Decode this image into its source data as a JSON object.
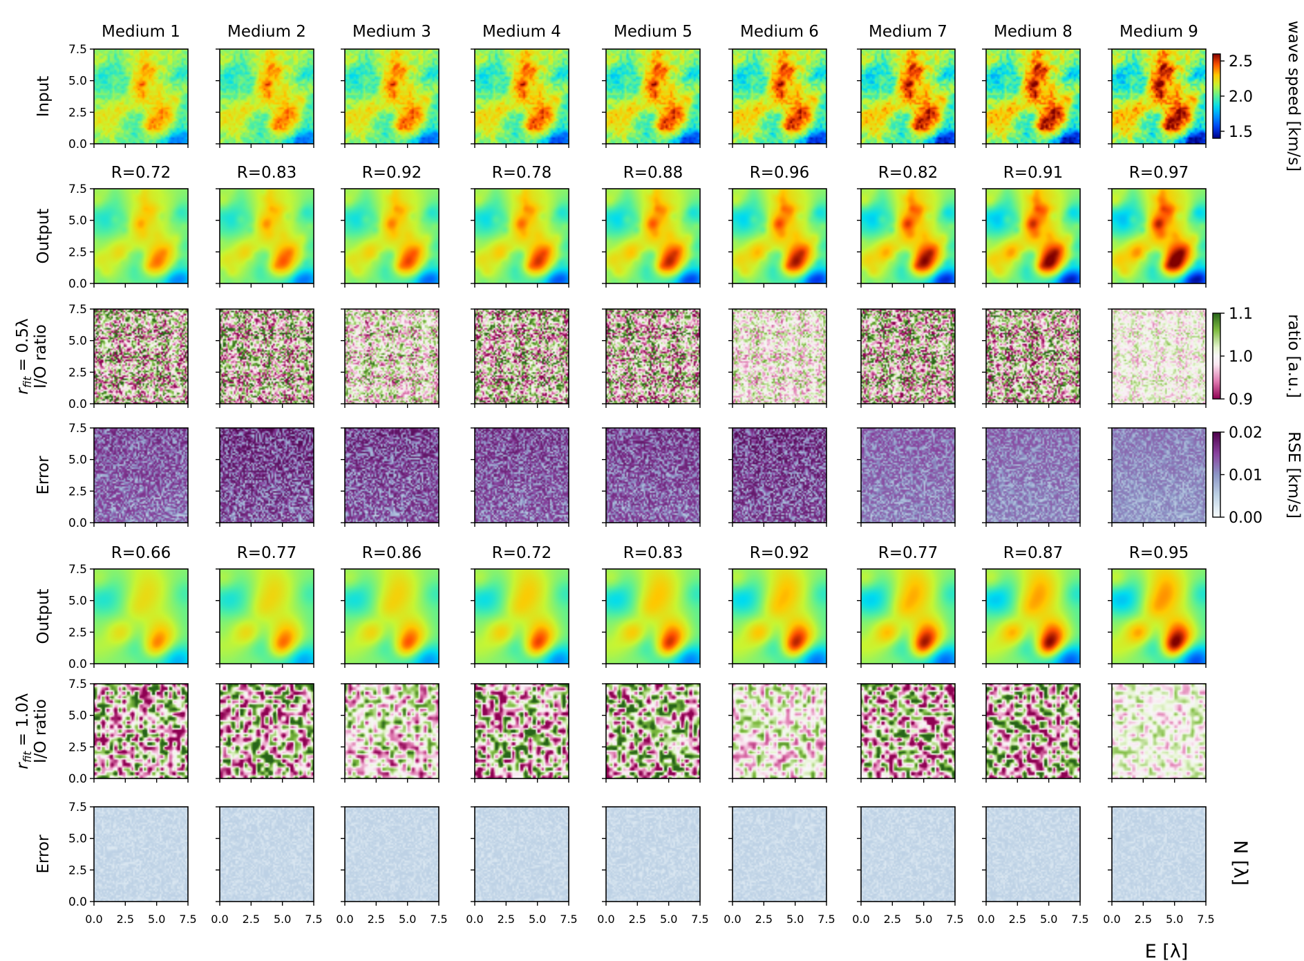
{
  "chart_data": {
    "type": "heatmap",
    "columns": [
      "Medium 1",
      "Medium 2",
      "Medium 3",
      "Medium 4",
      "Medium 5",
      "Medium 6",
      "Medium 7",
      "Medium 8",
      "Medium 9"
    ],
    "axis_ticks": [
      "0.0",
      "2.5",
      "5.0",
      "7.5"
    ],
    "xlabel": "E [λ]",
    "ylabel": "N [λ]",
    "xlim": [
      0,
      7.5
    ],
    "ylim": [
      0,
      7.5
    ],
    "correlation_prefix": "R=",
    "rows": [
      {
        "kind": "speed",
        "label_lines": [
          "Input"
        ],
        "colormap": "jet"
      },
      {
        "kind": "speed_smooth",
        "label_lines": [
          "Output"
        ],
        "colormap": "jet",
        "r_values": [
          "0.72",
          "0.83",
          "0.92",
          "0.78",
          "0.88",
          "0.96",
          "0.82",
          "0.91",
          "0.97"
        ]
      },
      {
        "kind": "ratio",
        "label_lines": [
          "r_fit = 0.5λ",
          "I/O ratio"
        ],
        "colormap": "PiYG"
      },
      {
        "kind": "error_strong",
        "label_lines": [
          "Error"
        ],
        "colormap": "BuPu"
      },
      {
        "kind": "speed_smoother",
        "label_lines": [
          "Output"
        ],
        "colormap": "jet",
        "r_values": [
          "0.66",
          "0.77",
          "0.86",
          "0.72",
          "0.83",
          "0.92",
          "0.77",
          "0.87",
          "0.95"
        ]
      },
      {
        "kind": "ratio_coarse",
        "label_lines": [
          "r_fit = 1.0λ",
          "I/O ratio"
        ],
        "colormap": "PiYG"
      },
      {
        "kind": "error_weak",
        "label_lines": [
          "Error"
        ],
        "colormap": "BuPu"
      }
    ],
    "colorbars": [
      {
        "label": "wave speed [km/s]",
        "ticks": [
          "2.5",
          "2.0",
          "1.5"
        ],
        "tick_values": [
          2.5,
          2.0,
          1.5
        ],
        "range": [
          1.4,
          2.6
        ],
        "colormap": "jet"
      },
      {
        "label": "ratio [a.u.]",
        "ticks": [
          "1.1",
          "1.0",
          "0.9"
        ],
        "tick_values": [
          1.1,
          1.0,
          0.9
        ],
        "range": [
          0.9,
          1.1
        ],
        "colormap": "PiYG"
      },
      {
        "label": "RSE [km/s]",
        "ticks": [
          "0.02",
          "0.01",
          "0.00"
        ],
        "tick_values": [
          0.02,
          0.01,
          0.0
        ],
        "range": [
          0.0,
          0.02
        ],
        "colormap": "BuPu"
      }
    ]
  }
}
